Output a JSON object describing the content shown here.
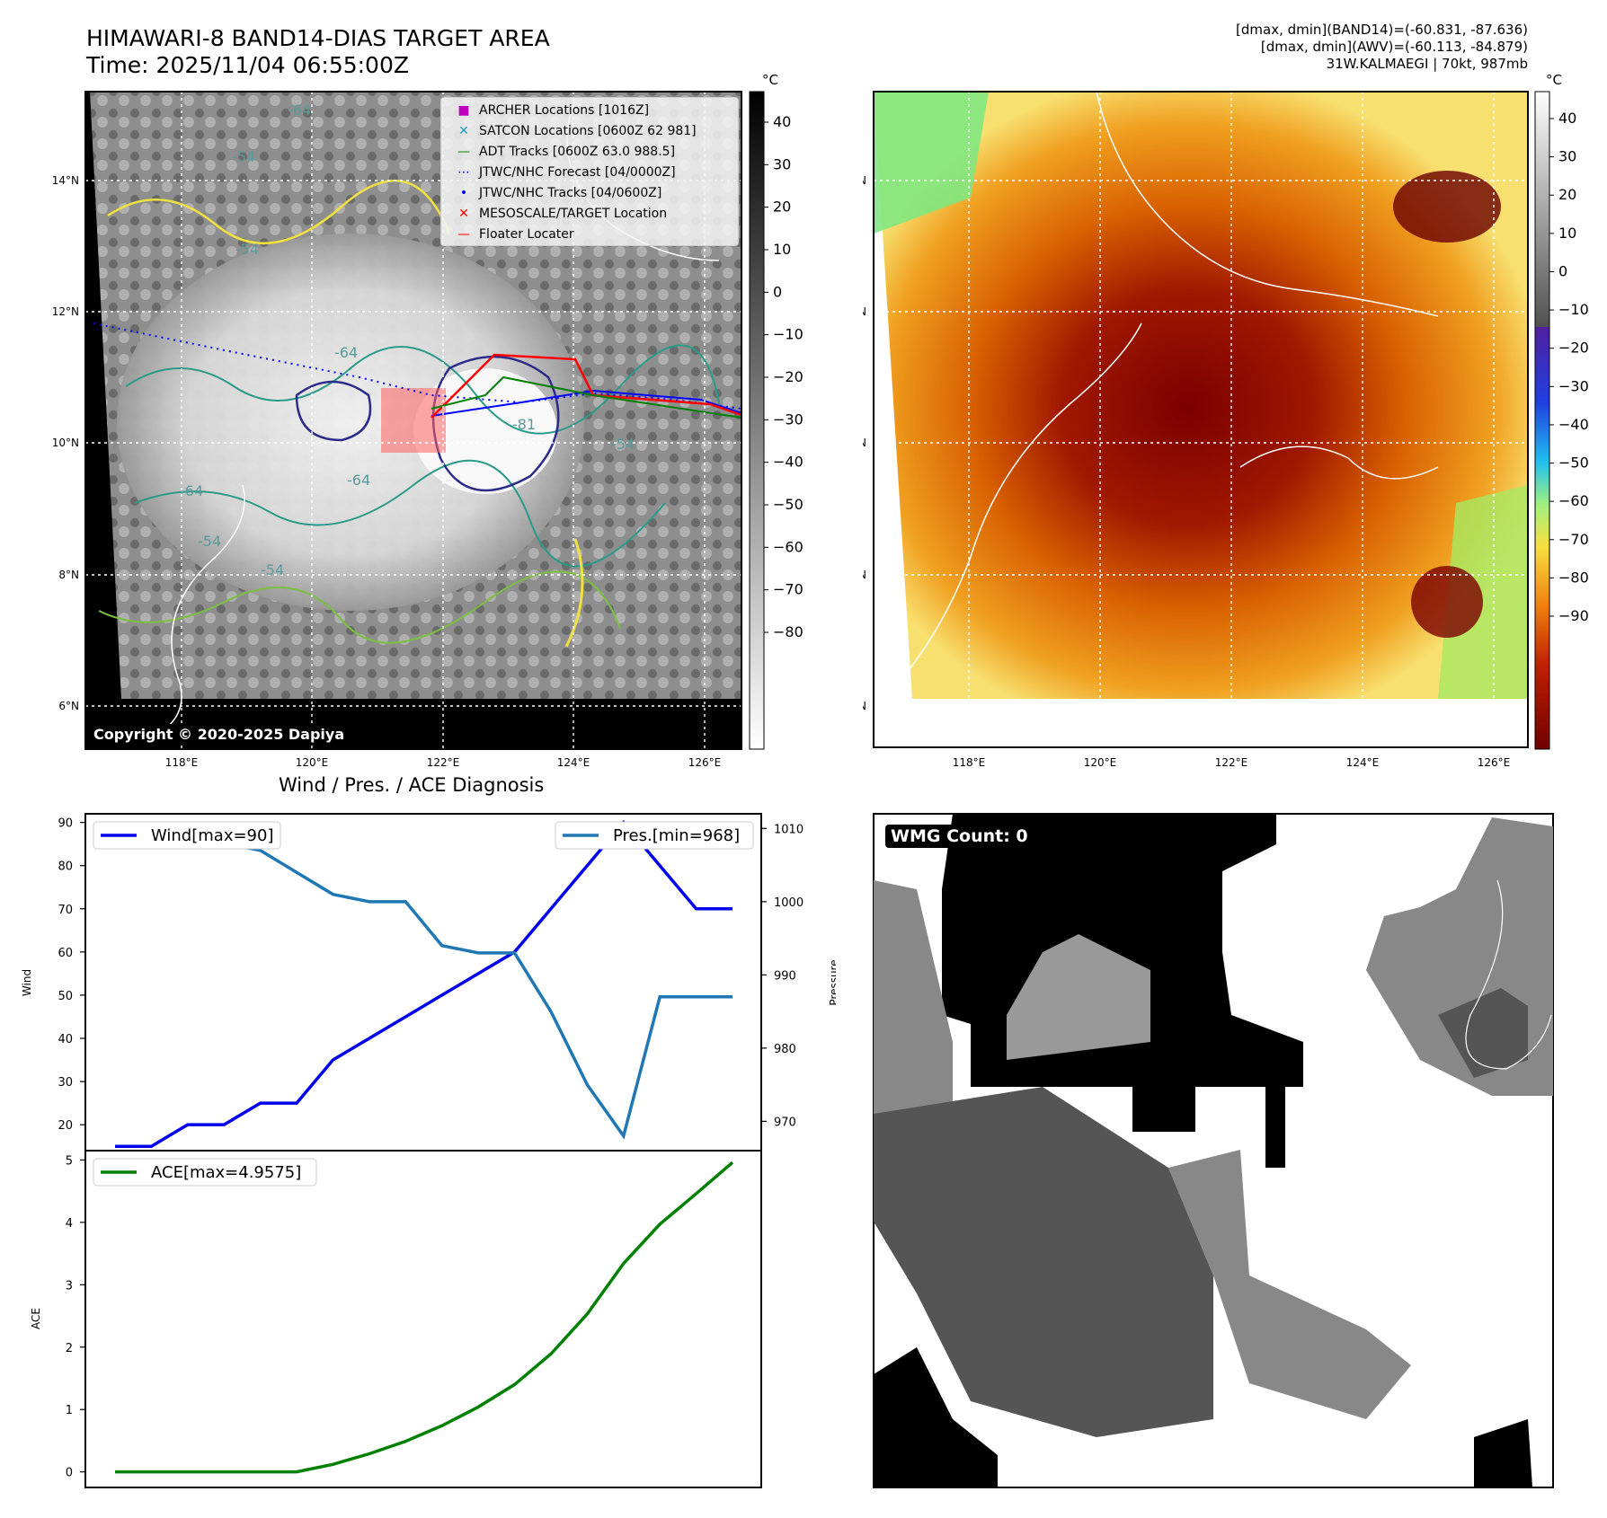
{
  "header": {
    "title": "HIMAWARI-8 BAND14-DIAS TARGET AREA",
    "time": "Time: 2025/11/04 06:55:00Z",
    "info_line1": "[dmax, dmin](BAND14)=(-60.831, -87.636)",
    "info_line2": "[dmax, dmin](AWV)=(-60.113, -84.879)",
    "info_line3": "31W.KALMAEGI | 70kt, 987mb"
  },
  "copyright": "Copyright © 2020-2025 Dapiya",
  "map_axes": {
    "lon_ticks": [
      "118°E",
      "120°E",
      "122°E",
      "124°E",
      "126°E"
    ],
    "lat_ticks": [
      "14°N",
      "12°N",
      "10°N",
      "8°N",
      "6°N"
    ]
  },
  "left_map": {
    "legend": [
      {
        "label": "ARCHER Locations [1016Z]",
        "symbol": "■",
        "color": "#c000c0"
      },
      {
        "label": "SATCON Locations [0600Z 62 981]",
        "symbol": "✕",
        "color": "#20a0c0"
      },
      {
        "label": "ADT Tracks [0600Z 63.0 988.5]",
        "symbol": "—",
        "color": "#008000"
      },
      {
        "label": "JTWC/NHC Forecast [04/0000Z]",
        "symbol": "⋯",
        "color": "#0000ff"
      },
      {
        "label": "JTWC/NHC Tracks [04/0600Z]",
        "symbol": "•",
        "color": "#0000ff"
      },
      {
        "label": "MESOSCALE/TARGET Location",
        "symbol": "✕",
        "color": "#ff0000"
      },
      {
        "label": "Floater Locater",
        "symbol": "—",
        "color": "#ff0000"
      }
    ],
    "contour_labels": [
      "-64",
      "-54",
      "-54",
      "-64",
      "-64",
      "-54",
      "-54",
      "-81",
      "-54",
      "-64"
    ],
    "colorbar": {
      "unit": "°C",
      "ticks": [
        "40",
        "30",
        "20",
        "10",
        "0",
        "−10",
        "−20",
        "−30",
        "−40",
        "−50",
        "−60",
        "−70",
        "−80"
      ]
    }
  },
  "right_map": {
    "colorbar": {
      "unit": "°C",
      "ticks": [
        "40",
        "30",
        "20",
        "10",
        "0",
        "−10",
        "−20",
        "−30",
        "−40",
        "−50",
        "−60",
        "−70",
        "−80",
        "−90"
      ]
    }
  },
  "wmg": {
    "label": "WMG Count: 0"
  },
  "chart_data": [
    {
      "type": "line",
      "title": "Wind / Pres. / ACE Diagnosis",
      "xlabel": "",
      "ylabel": "Wind",
      "ylabel_right": "Pressure",
      "ylim": [
        14,
        92
      ],
      "ylim_right": [
        966,
        1012
      ],
      "yticks": [
        20,
        30,
        40,
        50,
        60,
        70,
        80,
        90
      ],
      "yticks_right": [
        970,
        980,
        990,
        1000,
        1010
      ],
      "series": [
        {
          "name": "Wind[max=90]",
          "color": "#0000ee",
          "axis": "left",
          "values": [
            15,
            15,
            20,
            20,
            25,
            25,
            35,
            40,
            45,
            50,
            55,
            60,
            70,
            80,
            90,
            80,
            70,
            70
          ]
        },
        {
          "name": "Pres.[min=968]",
          "color": "#1f77b4",
          "axis": "right",
          "values": [
            1010,
            1008,
            1008,
            1008,
            1007,
            1004,
            1001,
            1000,
            1000,
            994,
            993,
            993,
            985,
            975,
            968,
            987,
            987,
            987
          ]
        }
      ],
      "legend_left": "Wind[max=90]",
      "legend_right": "Pres.[min=968]"
    },
    {
      "type": "line",
      "title": "",
      "xlabel": "",
      "ylabel": "ACE",
      "ylim": [
        -0.25,
        5.15
      ],
      "yticks": [
        0,
        1,
        2,
        3,
        4,
        5
      ],
      "series": [
        {
          "name": "ACE[max=4.9575]",
          "color": "#008000",
          "values": [
            0,
            0,
            0,
            0,
            0,
            0,
            0.12,
            0.29,
            0.49,
            0.74,
            1.04,
            1.4,
            1.89,
            2.53,
            3.34,
            3.97,
            4.46,
            4.96
          ]
        }
      ],
      "legend": "ACE[max=4.9575]"
    }
  ]
}
